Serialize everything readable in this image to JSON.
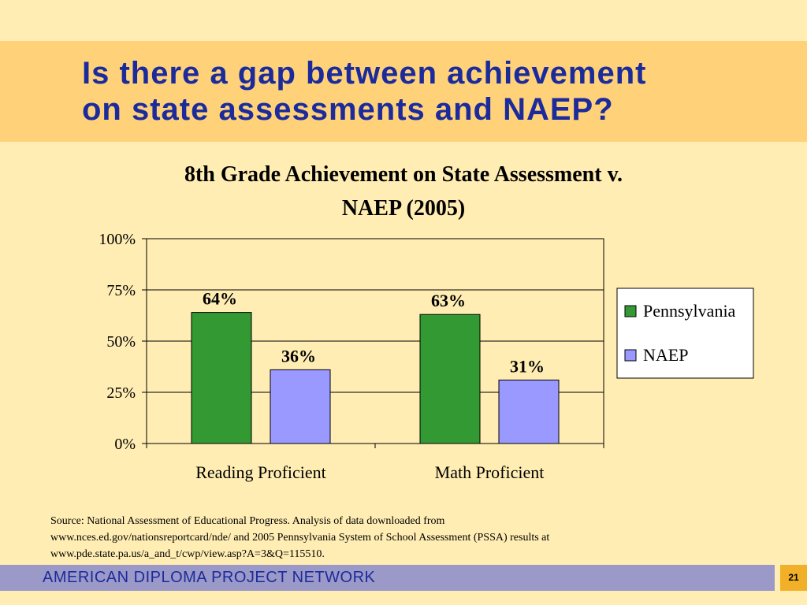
{
  "slide": {
    "title_line1": "Is there a gap between achievement",
    "title_line2": "on state assessments and NAEP?",
    "source_line1": "Source: National Assessment of Educational Progress.  Analysis of data downloaded from",
    "source_line2": "www.nces.ed.gov/nationsreportcard/nde/ and 2005 Pennsylvania System of School Assessment (PSSA) results at",
    "source_line3": "www.pde.state.pa.us/a_and_t/cwp/view.asp?A=3&Q=115510.",
    "footer": "AMERICAN DIPLOMA PROJECT NETWORK",
    "page_number": "21"
  },
  "chart_data": {
    "type": "bar",
    "title_line1": "8th Grade Achievement on State Assessment v.",
    "title_line2": "NAEP (2005)",
    "categories": [
      "Reading Proficient",
      "Math Proficient"
    ],
    "series": [
      {
        "name": "Pennsylvania",
        "values": [
          64,
          63
        ],
        "labels": [
          "64%",
          "63%"
        ],
        "color": "#339933"
      },
      {
        "name": "NAEP",
        "values": [
          36,
          31
        ],
        "labels": [
          "36%",
          "31%"
        ],
        "color": "#9999FF"
      }
    ],
    "ylim": [
      0,
      100
    ],
    "yticks": [
      0,
      25,
      50,
      75,
      100
    ],
    "ytick_labels": [
      "0%",
      "25%",
      "50%",
      "75%",
      "100%"
    ],
    "grid": true,
    "legend_position": "right",
    "xlabel": "",
    "ylabel": ""
  }
}
